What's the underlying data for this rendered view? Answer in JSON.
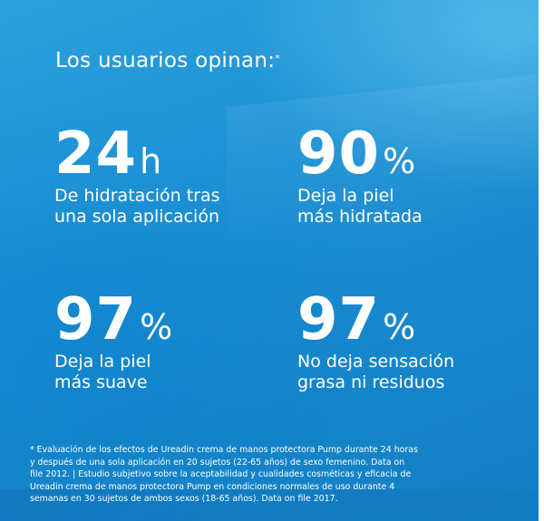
{
  "header": {
    "title": "Los usuarios opinan:",
    "title_marker": "*"
  },
  "stats": [
    {
      "value": "24",
      "unit": "h",
      "caption_lines": [
        "De hidratación tras",
        "una sola aplicación"
      ]
    },
    {
      "value": "90",
      "unit": "%",
      "caption_lines": [
        "Deja la piel",
        "más hidratada"
      ]
    },
    {
      "value": "97",
      "unit": "%",
      "caption_lines": [
        "Deja la piel",
        "más suave"
      ]
    },
    {
      "value": "97",
      "unit": "%",
      "caption_lines": [
        "No deja sensación",
        "grasa ni residuos"
      ]
    }
  ],
  "footnote": {
    "lines": [
      "* Evaluación de los efectos de Ureadin crema de manos protectora Pump durante 24 horas",
      "y después de una sola aplicación en 20 sujetos (22-65 años) de sexo femenino. Data on",
      "file 2012. | Estudio subjetivo sobre la aceptabilidad y cualidades cosméticas y eficacia de",
      "Ureadin crema de manos protectora Pump en condiciones normales de uso durante 4",
      "semanas en 30 sujetos de ambos sexos (18-65 años). Data on file 2017."
    ]
  },
  "colors": {
    "background_top": "#2aa0dc",
    "background_bottom": "#137fc4",
    "text": "#ffffff"
  }
}
